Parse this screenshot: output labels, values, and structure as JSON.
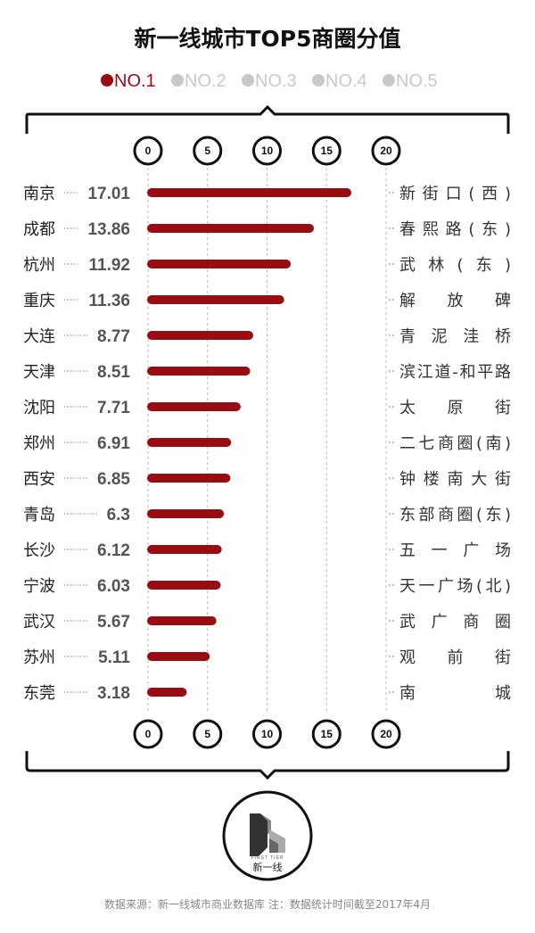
{
  "title": "新一线城市TOP5商圈分值",
  "legend": [
    {
      "label": "NO.1",
      "color": "#9b0b12",
      "active": true
    },
    {
      "label": "NO.2",
      "color": "#c8c8c8",
      "active": false
    },
    {
      "label": "NO.3",
      "color": "#c8c8c8",
      "active": false
    },
    {
      "label": "NO.4",
      "color": "#c8c8c8",
      "active": false
    },
    {
      "label": "NO.5",
      "color": "#c8c8c8",
      "active": false
    }
  ],
  "chart_data": {
    "type": "bar",
    "orientation": "horizontal",
    "xlim": [
      0,
      20
    ],
    "ticks": [
      "0",
      "5",
      "10",
      "15",
      "20"
    ],
    "grid": true,
    "bar_color": "#9b0b12",
    "rows": [
      {
        "city": "南京",
        "value": 17.01,
        "value_label": "17.01",
        "district": "新街口(西)"
      },
      {
        "city": "成都",
        "value": 13.86,
        "value_label": "13.86",
        "district": "春熙路(东)"
      },
      {
        "city": "杭州",
        "value": 11.92,
        "value_label": "11.92",
        "district": "武林(东)"
      },
      {
        "city": "重庆",
        "value": 11.36,
        "value_label": "11.36",
        "district": "解放碑"
      },
      {
        "city": "大连",
        "value": 8.77,
        "value_label": "8.77",
        "district": "青泥洼桥"
      },
      {
        "city": "天津",
        "value": 8.51,
        "value_label": "8.51",
        "district": "滨江道-和平路"
      },
      {
        "city": "沈阳",
        "value": 7.71,
        "value_label": "7.71",
        "district": "太原街"
      },
      {
        "city": "郑州",
        "value": 6.91,
        "value_label": "6.91",
        "district": "二七商圈(南)"
      },
      {
        "city": "西安",
        "value": 6.85,
        "value_label": "6.85",
        "district": "钟楼南大街"
      },
      {
        "city": "青岛",
        "value": 6.3,
        "value_label": "6.3",
        "district": "东部商圈(东)"
      },
      {
        "city": "长沙",
        "value": 6.12,
        "value_label": "6.12",
        "district": "五一广场"
      },
      {
        "city": "宁波",
        "value": 6.03,
        "value_label": "6.03",
        "district": "天一广场(北)"
      },
      {
        "city": "武汉",
        "value": 5.67,
        "value_label": "5.67",
        "district": "武广商圈"
      },
      {
        "city": "苏州",
        "value": 5.11,
        "value_label": "5.11",
        "district": "观前街"
      },
      {
        "city": "东莞",
        "value": 3.18,
        "value_label": "3.18",
        "district": "南城"
      }
    ]
  },
  "logo": {
    "text": "新一线",
    "sub": "FIRST TIER"
  },
  "footer": "数据来源：新一线城市商业数据库  注：数据统计时间截至2017年4月"
}
